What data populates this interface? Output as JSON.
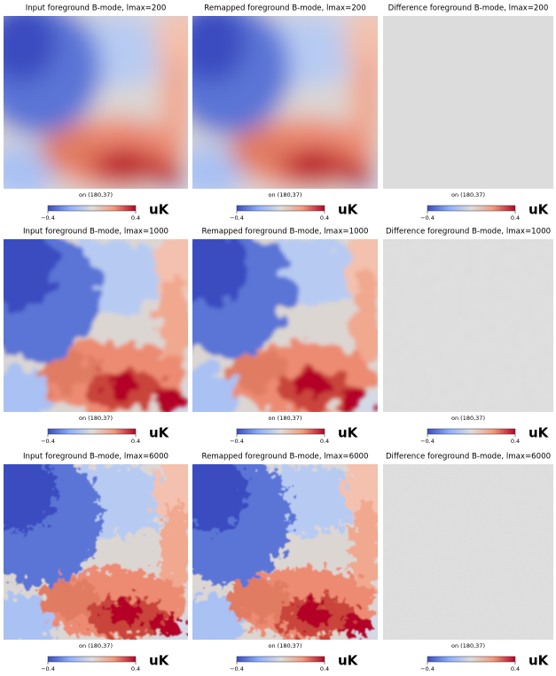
{
  "panels": [
    {
      "title": "Input foreground B-mode, lmax=200",
      "caption": "on (180,37)",
      "colorbar": {
        "min_label": "−0.4",
        "max_label": "0.4",
        "unit": "uK"
      }
    },
    {
      "title": "Remapped foreground B-mode, lmax=200",
      "caption": "on (180,37)",
      "colorbar": {
        "min_label": "−0.4",
        "max_label": "0.4",
        "unit": "uK"
      }
    },
    {
      "title": "Difference foreground B-mode, lmax=200",
      "caption": "on (180,37)",
      "colorbar": {
        "min_label": "−0.4",
        "max_label": "0.4",
        "unit": "uK"
      }
    },
    {
      "title": "Input foreground B-mode, lmax=1000",
      "caption": "on (180,37)",
      "colorbar": {
        "min_label": "−0.4",
        "max_label": "0.4",
        "unit": "uK"
      }
    },
    {
      "title": "Remapped foreground B-mode, lmax=1000",
      "caption": "on (180,37)",
      "colorbar": {
        "min_label": "−0.4",
        "max_label": "0.4",
        "unit": "uK"
      }
    },
    {
      "title": "Difference foreground B-mode, lmax=1000",
      "caption": "on (180,37)",
      "colorbar": {
        "min_label": "−0.4",
        "max_label": "0.4",
        "unit": "uK"
      }
    },
    {
      "title": "Input foreground B-mode, lmax=6000",
      "caption": "on (180,37)",
      "colorbar": {
        "min_label": "−0.4",
        "max_label": "0.4",
        "unit": "uK"
      }
    },
    {
      "title": "Remapped foreground B-mode, lmax=6000",
      "caption": "on (180,37)",
      "colorbar": {
        "min_label": "−0.4",
        "max_label": "0.4",
        "unit": "uK"
      }
    },
    {
      "title": "Difference foreground B-mode, lmax=6000",
      "caption": "on (180,37)",
      "colorbar": {
        "min_label": "−0.4",
        "max_label": "0.4",
        "unit": "uK"
      }
    }
  ]
}
